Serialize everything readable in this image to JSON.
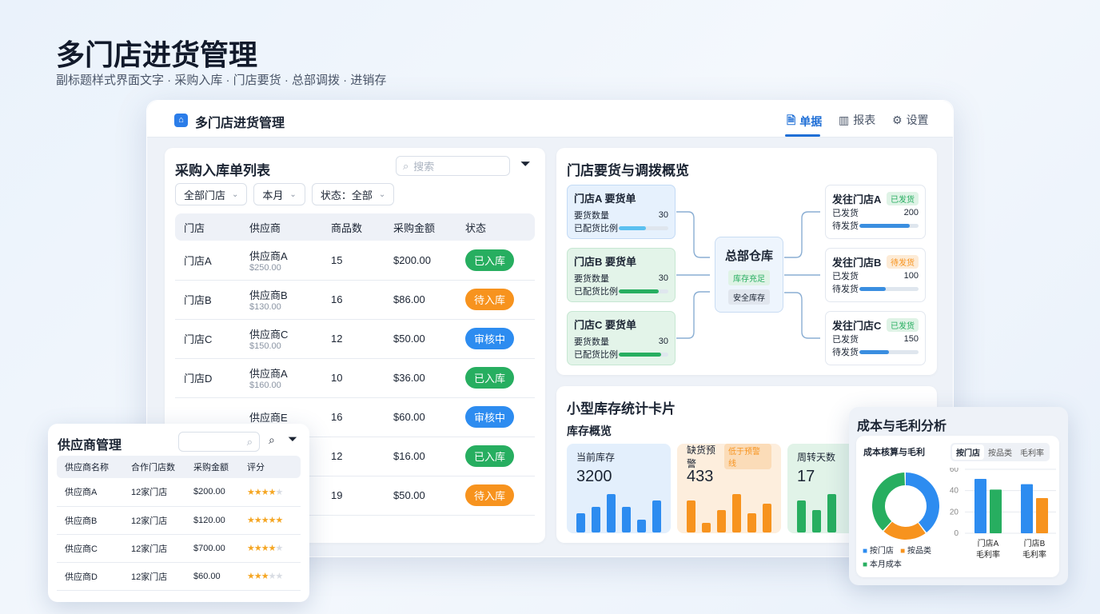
{
  "page": {
    "title": "多门店进货管理",
    "subtitle": "副标题样式界面文字 · 采购入库 · 门店要货 · 总部调拨 · 进销存"
  },
  "app": {
    "title": "多门店进货管理",
    "tabs": [
      {
        "label": "单据",
        "icon": "document-icon",
        "active": true
      },
      {
        "label": "报表",
        "icon": "chart-icon"
      },
      {
        "label": "设置",
        "icon": "gear-icon"
      }
    ]
  },
  "purchase": {
    "title": "采购入库单列表",
    "search_placeholder": "搜索",
    "filters": [
      "全部门店",
      "本月",
      "状态：全部"
    ],
    "columns": [
      "门店",
      "供应商",
      "商品数",
      "采购金额",
      "状态"
    ],
    "rows": [
      {
        "store": "门店A",
        "supplier": "供应商A",
        "sub": "$250.00",
        "count": "15",
        "amount": "$200.00",
        "status": "已入库",
        "color": "#27ae60"
      },
      {
        "store": "门店B",
        "supplier": "供应商B",
        "sub": "$130.00",
        "count": "16",
        "amount": "$86.00",
        "status": "待入库",
        "color": "#f7931e"
      },
      {
        "store": "门店C",
        "supplier": "供应商C",
        "sub": "$150.00",
        "count": "12",
        "amount": "$50.00",
        "status": "审核中",
        "color": "#2d8cf0"
      },
      {
        "store": "门店D",
        "supplier": "供应商A",
        "sub": "$160.00",
        "count": "10",
        "amount": "$36.00",
        "status": "已入库",
        "color": "#27ae60"
      },
      {
        "store": "",
        "supplier": "供应商E",
        "sub": "",
        "count": "16",
        "amount": "$60.00",
        "status": "审核中",
        "color": "#2d8cf0"
      },
      {
        "store": "",
        "supplier": "",
        "sub": "",
        "count": "12",
        "amount": "$16.00",
        "status": "已入库",
        "color": "#27ae60"
      },
      {
        "store": "",
        "supplier": "",
        "sub": "",
        "count": "19",
        "amount": "$50.00",
        "status": "待入库",
        "color": "#f7931e"
      }
    ]
  },
  "flow": {
    "title": "门店要货与调拨概览",
    "requests": [
      {
        "title": "门店A 要货单",
        "qty_label": "要货数量",
        "qty": "30",
        "ratio_label": "已配货比例",
        "ratio": 0.55,
        "color": "#5bc0f0"
      },
      {
        "title": "门店B 要货单",
        "qty_label": "要货数量",
        "qty": "30",
        "ratio_label": "已配货比例",
        "ratio": 0.8,
        "color": "#27ae60"
      },
      {
        "title": "门店C 要货单",
        "qty_label": "要货数量",
        "qty": "30",
        "ratio_label": "已配货比例",
        "ratio": 0.85,
        "color": "#27ae60"
      }
    ],
    "hub": {
      "title": "总部仓库",
      "tag1": "库存充足",
      "tag2": "安全库存"
    },
    "outs": [
      {
        "title": "发往门店A",
        "tag": "已发货",
        "tagtype": "green",
        "shipped_label": "已发货",
        "shipped": "200",
        "pending_label": "待发货",
        "ratio": 0.85
      },
      {
        "title": "发往门店B",
        "tag": "待发货",
        "tagtype": "orange",
        "shipped_label": "已发货",
        "shipped": "100",
        "pending_label": "待发货",
        "ratio": 0.45
      },
      {
        "title": "发往门店C",
        "tag": "已发货",
        "tagtype": "green",
        "shipped_label": "已发货",
        "shipped": "150",
        "pending_label": "待发货",
        "ratio": 0.5
      }
    ]
  },
  "inventory": {
    "title": "小型库存统计卡片",
    "subtitle": "库存概览",
    "cards": [
      {
        "label": "当前库存",
        "value": "3200",
        "tag": "",
        "bg": "#e3effc",
        "color": "#2d8cf0",
        "bars": [
          3,
          4,
          6,
          4,
          2,
          5
        ]
      },
      {
        "label": "缺货预警",
        "value": "433",
        "tag": "低于预警线",
        "bg": "#fdeedd",
        "color": "#f7931e",
        "bars": [
          5,
          1.5,
          3.5,
          6,
          3,
          4.5
        ]
      },
      {
        "label": "周转天数",
        "value": "17",
        "tag": "",
        "bg": "#e1f3e8",
        "color": "#27ae60",
        "bars": [
          5,
          3.5,
          6
        ]
      }
    ]
  },
  "suppliers": {
    "title": "供应商管理",
    "columns": [
      "供应商名称",
      "合作门店数",
      "采购金额",
      "评分"
    ],
    "rows": [
      {
        "name": "供应商A",
        "stores": "12家门店",
        "amount": "$200.00",
        "rating": 4
      },
      {
        "name": "供应商B",
        "stores": "12家门店",
        "amount": "$120.00",
        "rating": 4.5
      },
      {
        "name": "供应商C",
        "stores": "12家门店",
        "amount": "$700.00",
        "rating": 4
      },
      {
        "name": "供应商D",
        "stores": "12家门店",
        "amount": "$60.00",
        "rating": 3
      }
    ]
  },
  "cost": {
    "title": "成本与毛利分析",
    "subtitle": "成本核算与毛利",
    "tabs": [
      "按门店",
      "按品类",
      "毛利率"
    ],
    "chart_data": [
      {
        "type": "pie",
        "series": [
          {
            "name": "按门店",
            "value": 40,
            "color": "#2d8cf0"
          },
          {
            "name": "按品类",
            "value": 22,
            "color": "#f7931e"
          },
          {
            "name": "本月成本",
            "value": 38,
            "color": "#27ae60"
          }
        ]
      },
      {
        "type": "bar",
        "categories": [
          "门店A\n毛利率",
          "门店B\n毛利率"
        ],
        "category_lines": [
          [
            "门店A",
            "毛利率"
          ],
          [
            "门店B",
            "毛利率"
          ]
        ],
        "series": [
          {
            "values": [
              51,
              46
            ],
            "color": "#2d8cf0"
          },
          {
            "values": [
              41,
              33
            ],
            "color": "#27ae60|#f7931e"
          }
        ],
        "ylim": [
          0,
          60
        ],
        "yticks": [
          "0",
          "20",
          "40",
          "60"
        ],
        "grid": true
      }
    ]
  }
}
